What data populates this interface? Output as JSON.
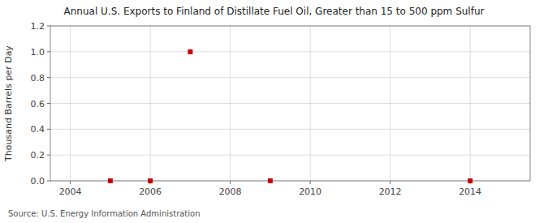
{
  "chart_data": {
    "type": "scatter",
    "title": "Annual U.S. Exports to Finland of Distillate Fuel Oil, Greater than 15 to 500 ppm Sulfur",
    "y_label": "Thousand Barrels per Day",
    "source": "Source: U.S. Energy Information Administration",
    "x": [
      2005,
      2006,
      2007,
      2009,
      2014
    ],
    "values": [
      0.0,
      0.0,
      1.0,
      0.0,
      0.0
    ],
    "color": "#cc0000",
    "marker": "square",
    "grid": true,
    "xlim": [
      2003.5,
      2015.5
    ],
    "xticks": [
      2004,
      2006,
      2008,
      2010,
      2012,
      2014
    ],
    "ylim": [
      0,
      1.2
    ],
    "yticks": [
      {
        "value": 0.0,
        "label": "0.0"
      },
      0.2,
      0.4,
      0.6,
      0.8,
      {
        "value": 1.0,
        "label": "1.0"
      },
      1.2
    ]
  }
}
